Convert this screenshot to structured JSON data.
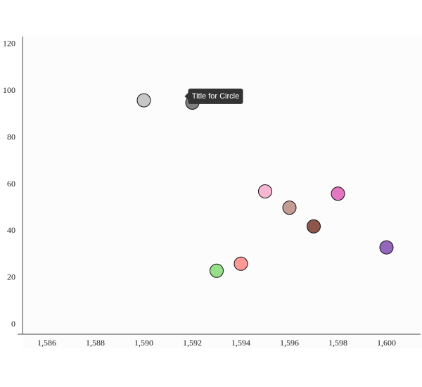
{
  "chart_data": {
    "type": "scatter",
    "x": [
      1590,
      1592,
      1593,
      1594,
      1595,
      1596,
      1597,
      1598,
      1600
    ],
    "values": [
      96,
      95,
      23,
      26,
      57,
      50,
      42,
      56,
      33
    ],
    "colors": [
      "#c7c7c7",
      "#7f7f7f",
      "#98df8a",
      "#ff9896",
      "#f7b6d2",
      "#c49c94",
      "#8c564b",
      "#e377c2",
      "#9467bd"
    ],
    "xlim": [
      1585,
      1601.4
    ],
    "ylim": [
      -4.2,
      123.3
    ],
    "xticks": [
      {
        "value": 1586,
        "label": "1,586"
      },
      {
        "value": 1588,
        "label": "1,588"
      },
      {
        "value": 1590,
        "label": "1,590"
      },
      {
        "value": 1592,
        "label": "1,592"
      },
      {
        "value": 1594,
        "label": "1,594"
      },
      {
        "value": 1596,
        "label": "1,596"
      },
      {
        "value": 1598,
        "label": "1,598"
      },
      {
        "value": 1600,
        "label": "1,600"
      }
    ],
    "yticks": [
      0,
      20,
      40,
      60,
      80,
      100,
      120
    ],
    "grid": false,
    "tooltip": "Title for Circle"
  }
}
